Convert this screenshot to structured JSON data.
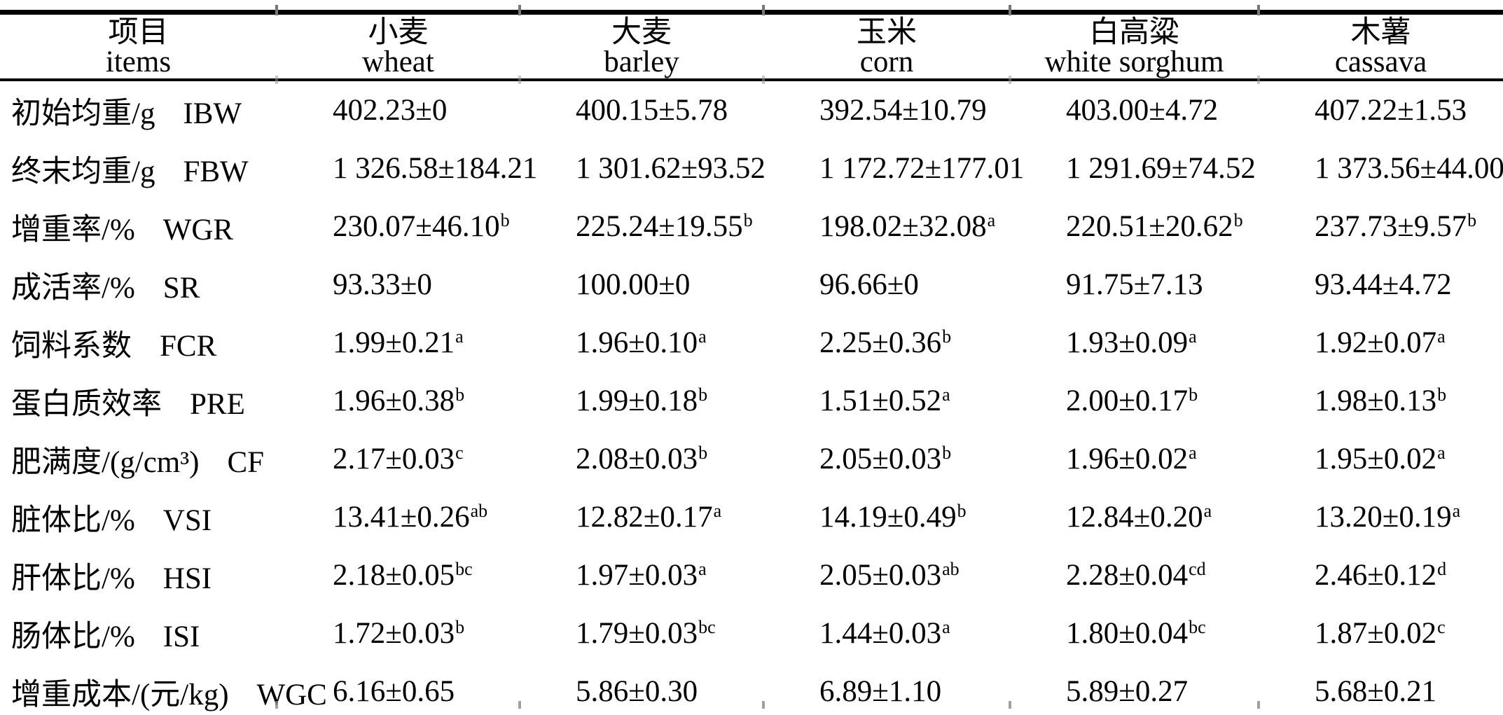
{
  "page": {
    "background": "#ffffff",
    "text_color": "#000000",
    "rule_color": "#000000"
  },
  "table": {
    "columns": [
      {
        "zh": "项目",
        "en": "items"
      },
      {
        "zh": "小麦",
        "en": "wheat"
      },
      {
        "zh": "大麦",
        "en": "barley"
      },
      {
        "zh": "玉米",
        "en": "corn"
      },
      {
        "zh": "白高粱",
        "en": "white sorghum"
      },
      {
        "zh": "木薯",
        "en": "cassava"
      }
    ],
    "rows": [
      {
        "label_zh": "初始均重/g",
        "label_en": "IBW",
        "values": [
          {
            "v": "402.23±0"
          },
          {
            "v": "400.15±5.78"
          },
          {
            "v": "392.54±10.79"
          },
          {
            "v": "403.00±4.72"
          },
          {
            "v": "407.22±1.53"
          }
        ]
      },
      {
        "label_zh": "终末均重/g",
        "label_en": "FBW",
        "values": [
          {
            "v": "1 326.58±184.21"
          },
          {
            "v": "1 301.62±93.52"
          },
          {
            "v": "1 172.72±177.01"
          },
          {
            "v": "1 291.69±74.52"
          },
          {
            "v": "1 373.56±44.00"
          }
        ]
      },
      {
        "label_zh": "增重率/%",
        "label_en": "WGR",
        "values": [
          {
            "v": "230.07±46.10",
            "s": "b"
          },
          {
            "v": "225.24±19.55",
            "s": "b"
          },
          {
            "v": "198.02±32.08",
            "s": "a"
          },
          {
            "v": "220.51±20.62",
            "s": "b"
          },
          {
            "v": "237.73±9.57",
            "s": "b"
          }
        ]
      },
      {
        "label_zh": "成活率/%",
        "label_en": "SR",
        "values": [
          {
            "v": "93.33±0"
          },
          {
            "v": "100.00±0"
          },
          {
            "v": "96.66±0"
          },
          {
            "v": "91.75±7.13"
          },
          {
            "v": "93.44±4.72"
          }
        ]
      },
      {
        "label_zh": "饲料系数",
        "label_en": "FCR",
        "values": [
          {
            "v": "1.99±0.21",
            "s": "a"
          },
          {
            "v": "1.96±0.10",
            "s": "a"
          },
          {
            "v": "2.25±0.36",
            "s": "b"
          },
          {
            "v": "1.93±0.09",
            "s": "a"
          },
          {
            "v": "1.92±0.07",
            "s": "a"
          }
        ]
      },
      {
        "label_zh": "蛋白质效率",
        "label_en": "PRE",
        "values": [
          {
            "v": "1.96±0.38",
            "s": "b"
          },
          {
            "v": "1.99±0.18",
            "s": "b"
          },
          {
            "v": "1.51±0.52",
            "s": "a"
          },
          {
            "v": "2.00±0.17",
            "s": "b"
          },
          {
            "v": "1.98±0.13",
            "s": "b"
          }
        ]
      },
      {
        "label_zh": "肥满度/(g/cm³)",
        "label_en": "CF",
        "values": [
          {
            "v": "2.17±0.03",
            "s": "c"
          },
          {
            "v": "2.08±0.03",
            "s": "b"
          },
          {
            "v": "2.05±0.03",
            "s": "b"
          },
          {
            "v": "1.96±0.02",
            "s": "a"
          },
          {
            "v": "1.95±0.02",
            "s": "a"
          }
        ]
      },
      {
        "label_zh": "脏体比/%",
        "label_en": "VSI",
        "values": [
          {
            "v": "13.41±0.26",
            "s": "ab"
          },
          {
            "v": "12.82±0.17",
            "s": "a"
          },
          {
            "v": "14.19±0.49",
            "s": "b"
          },
          {
            "v": "12.84±0.20",
            "s": "a"
          },
          {
            "v": "13.20±0.19",
            "s": "a"
          }
        ]
      },
      {
        "label_zh": "肝体比/%",
        "label_en": "HSI",
        "values": [
          {
            "v": "2.18±0.05",
            "s": "bc"
          },
          {
            "v": "1.97±0.03",
            "s": "a"
          },
          {
            "v": "2.05±0.03",
            "s": "ab"
          },
          {
            "v": "2.28±0.04",
            "s": "cd"
          },
          {
            "v": "2.46±0.12",
            "s": "d"
          }
        ]
      },
      {
        "label_zh": "肠体比/%",
        "label_en": "ISI",
        "values": [
          {
            "v": "1.72±0.03",
            "s": "b"
          },
          {
            "v": "1.79±0.03",
            "s": "bc"
          },
          {
            "v": "1.44±0.03",
            "s": "a"
          },
          {
            "v": "1.80±0.04",
            "s": "bc"
          },
          {
            "v": "1.87±0.02",
            "s": "c"
          }
        ]
      },
      {
        "label_zh": "增重成本/(元/kg)",
        "label_en": "WGC",
        "values": [
          {
            "v": "6.16±0.65"
          },
          {
            "v": "5.86±0.30"
          },
          {
            "v": "6.89±1.10"
          },
          {
            "v": "5.89±0.27"
          },
          {
            "v": "5.68±0.21"
          }
        ]
      }
    ]
  }
}
